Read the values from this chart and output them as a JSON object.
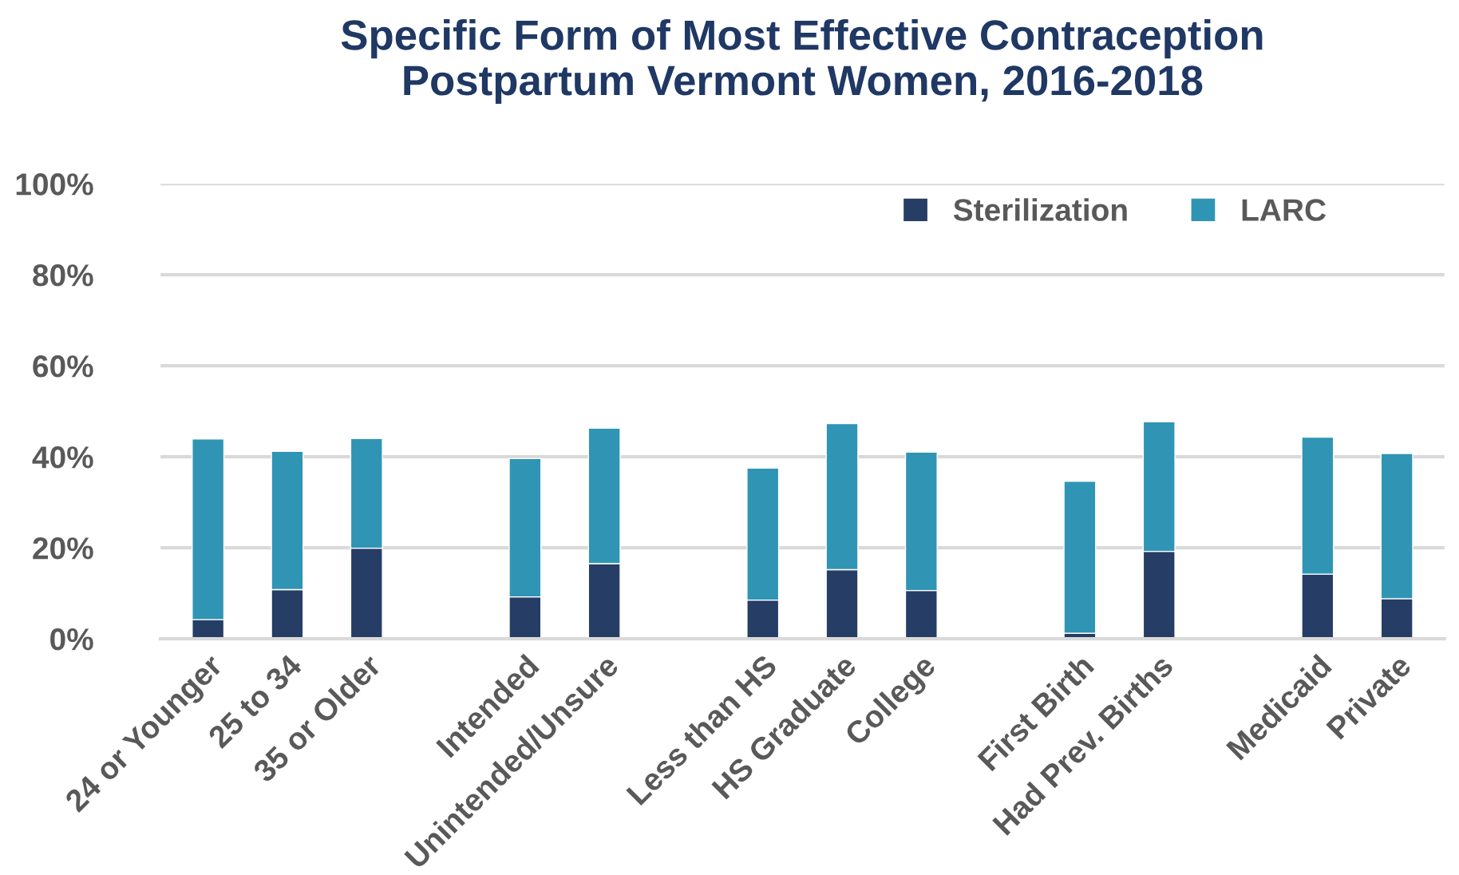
{
  "chart_data": {
    "type": "bar",
    "title": "Specific Form of Most Effective Contraception\nPostpartum Vermont Women, 2016-2018",
    "stacked": true,
    "categories": [
      "24 or Younger",
      "25 to 34",
      "35 or Older",
      null,
      "Intended",
      "Unintended/Unsure",
      null,
      "Less than HS",
      "HS Graduate",
      "College",
      null,
      "First Birth",
      "Had Prev. Births",
      null,
      "Medicaid",
      "Private"
    ],
    "series": [
      {
        "name": "Sterilization",
        "color": "#263d66",
        "values": [
          4.2,
          10.8,
          19.9,
          null,
          9.2,
          16.5,
          null,
          8.5,
          15.2,
          10.6,
          null,
          1.2,
          19.2,
          null,
          14.2,
          8.8
        ]
      },
      {
        "name": "LARC",
        "color": "#3095b4",
        "values": [
          39.7,
          30.4,
          24.1,
          null,
          30.4,
          29.8,
          null,
          29.0,
          32.1,
          30.4,
          null,
          33.4,
          28.5,
          null,
          30.1,
          31.9
        ]
      }
    ],
    "ylim": [
      0,
      100
    ],
    "yticks": [
      {
        "value": 0,
        "label": "0%"
      },
      {
        "value": 20,
        "label": "20%"
      },
      {
        "value": 40,
        "label": "40%"
      },
      {
        "value": 60,
        "label": "60%"
      },
      {
        "value": 80,
        "label": "80%"
      },
      {
        "value": 100,
        "label": "100%"
      }
    ],
    "grid": "y",
    "legend": "top right"
  }
}
